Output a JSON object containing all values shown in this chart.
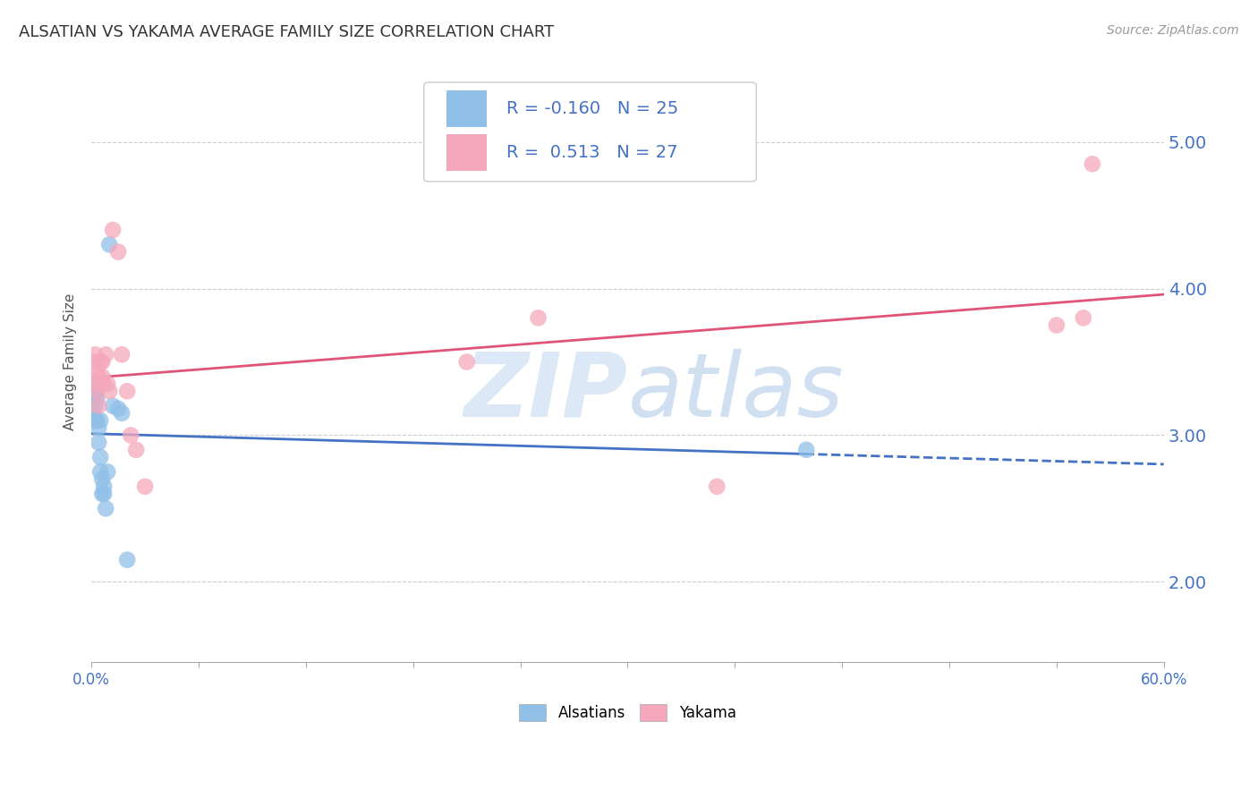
{
  "title": "ALSATIAN VS YAKAMA AVERAGE FAMILY SIZE CORRELATION CHART",
  "source": "Source: ZipAtlas.com",
  "ylabel": "Average Family Size",
  "y_ticks": [
    2.0,
    3.0,
    4.0,
    5.0
  ],
  "ylim": [
    1.45,
    5.55
  ],
  "xlim": [
    0.0,
    0.6
  ],
  "alsatian_x": [
    0.001,
    0.001,
    0.001,
    0.002,
    0.002,
    0.003,
    0.003,
    0.003,
    0.004,
    0.004,
    0.005,
    0.005,
    0.005,
    0.006,
    0.006,
    0.007,
    0.007,
    0.008,
    0.009,
    0.01,
    0.012,
    0.015,
    0.017,
    0.02,
    0.4
  ],
  "alsatian_y": [
    3.35,
    3.25,
    3.15,
    3.2,
    3.1,
    3.3,
    3.25,
    3.1,
    3.05,
    2.95,
    3.1,
    2.85,
    2.75,
    2.7,
    2.6,
    2.65,
    2.6,
    2.5,
    2.75,
    4.3,
    3.2,
    3.18,
    3.15,
    2.15,
    2.9
  ],
  "yakama_x": [
    0.001,
    0.002,
    0.002,
    0.003,
    0.003,
    0.004,
    0.004,
    0.005,
    0.006,
    0.006,
    0.007,
    0.008,
    0.009,
    0.01,
    0.012,
    0.015,
    0.017,
    0.02,
    0.022,
    0.025,
    0.03,
    0.21,
    0.25,
    0.35,
    0.54,
    0.555,
    0.56
  ],
  "yakama_y": [
    3.5,
    3.55,
    3.35,
    3.45,
    3.3,
    3.4,
    3.2,
    3.5,
    3.5,
    3.4,
    3.35,
    3.55,
    3.35,
    3.3,
    4.4,
    4.25,
    3.55,
    3.3,
    3.0,
    2.9,
    2.65,
    3.5,
    3.8,
    2.65,
    3.75,
    3.8,
    4.85
  ],
  "alsatian_color": "#90c0e8",
  "yakama_color": "#f5a8bb",
  "alsatian_line_color": "#4472c4",
  "yakama_line_color": "#e05577",
  "R_alsatian": "-0.160",
  "N_alsatian": "25",
  "R_yakama": "0.513",
  "N_yakama": "27",
  "watermark_zip": "ZIP",
  "watermark_atlas": "atlas",
  "title_fontsize": 13,
  "axis_label_fontsize": 11,
  "tick_fontsize": 12,
  "legend_fontsize": 14,
  "watermark_fontsize": 72,
  "grid_color": "#cccccc",
  "tick_color": "#4472c4",
  "background_color": "#ffffff"
}
